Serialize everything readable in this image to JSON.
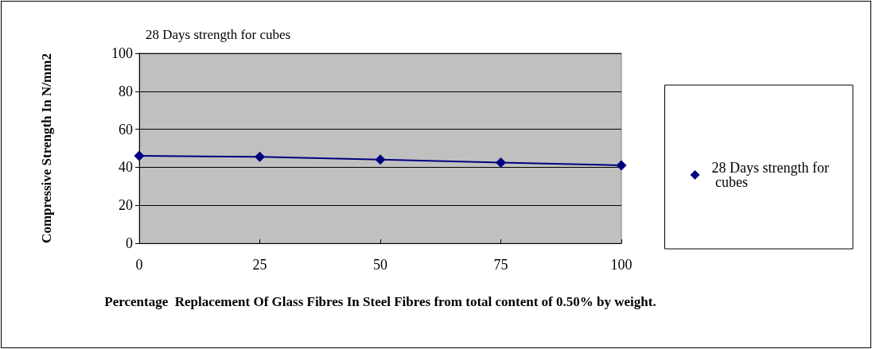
{
  "chart_data": {
    "type": "line",
    "title": "28 Days strength for cubes",
    "xlabel": "Percentage  Replacement Of Glass Fibres In Steel Fibres from total content of 0.50% by weight.",
    "ylabel": "Compressive Strength In N/mm2",
    "x": [
      0,
      25,
      50,
      75,
      100
    ],
    "series": [
      {
        "name": "28 Days strength for cubes",
        "color": "#000080",
        "values": [
          46,
          45.5,
          44,
          42.5,
          41
        ]
      }
    ],
    "xlim": [
      0,
      100
    ],
    "xticks": [
      0,
      25,
      50,
      75,
      100
    ],
    "ylim": [
      0,
      100
    ],
    "yticks": [
      0,
      20,
      40,
      60,
      80,
      100
    ],
    "grid": "y",
    "legend": "right",
    "marker": "diamond",
    "line_style": "solid"
  }
}
